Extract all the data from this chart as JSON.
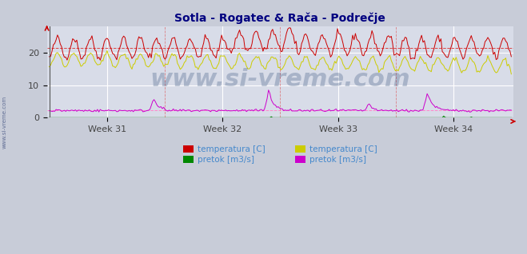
{
  "title": "Sotla - Rogatec & Rača - Podrečje",
  "title_color": "#000080",
  "bg_color": "#c8ccd8",
  "plot_bg_color": "#d8dce8",
  "grid_color": "#ffffff",
  "ylim": [
    0,
    28
  ],
  "yticks": [
    0,
    10,
    20
  ],
  "n_points": 336,
  "red_temp_mean": 21.5,
  "yellow_temp_mean": 18.0,
  "colors": {
    "red_temp": "#cc0000",
    "green_flow": "#008800",
    "yellow_temp": "#cccc00",
    "magenta_flow": "#cc00cc",
    "dashed_red": "#dd4444",
    "dashed_pink": "#ff88cc"
  },
  "legend_text_color": "#4488cc",
  "watermark": "www.si-vreme.com",
  "watermark_color": "#1a3a6a",
  "watermark_alpha": 0.25,
  "watermark_fontsize": 22,
  "sidebar_text": "www.si-vreme.com",
  "sidebar_color": "#334477",
  "axis_arrow_color": "#cc0000",
  "tick_color": "#444444",
  "tick_fontsize": 8,
  "title_fontsize": 10
}
